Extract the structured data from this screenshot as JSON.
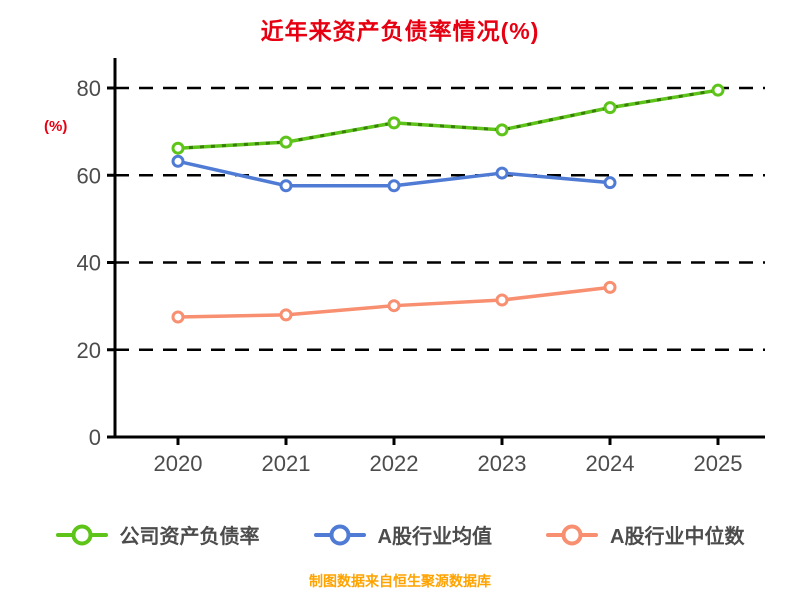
{
  "title": "近年来资产负债率情况(%)",
  "footer": "制图数据来自恒生聚源数据库",
  "colors": {
    "title_red": "#e60012",
    "footer_orange": "#ffa300",
    "axis_black": "#000000",
    "tick_text": "#4c4c4c",
    "series_green": "#5ec41a",
    "series_green_dash_overlay": "#2d6e00",
    "series_blue": "#4f7bd5",
    "series_orange": "#f78f70"
  },
  "chart_data": {
    "type": "line",
    "title": "近年来资产负债率情况(%)",
    "xlabel": "",
    "ylabel": "(%)",
    "x": [
      "2020",
      "2021",
      "2022",
      "2023",
      "2024",
      "2025"
    ],
    "ylim": [
      0,
      80
    ],
    "yticks": [
      0,
      20,
      40,
      60,
      80
    ],
    "grid": "horizontal dashed at 20/40/60/80",
    "legend_position": "bottom",
    "series": [
      {
        "name": "公司资产负债率",
        "color": "#5ec41a",
        "style": "solid-with-dark-dash-overlay",
        "marker": "open-circle",
        "values": [
          66.2,
          67.6,
          72.0,
          70.4,
          75.5,
          79.5
        ]
      },
      {
        "name": "A股行业均值",
        "color": "#4f7bd5",
        "style": "solid",
        "marker": "open-circle",
        "values": [
          63.2,
          57.6,
          57.6,
          60.5,
          58.3,
          null
        ]
      },
      {
        "name": "A股行业中位数",
        "color": "#f78f70",
        "style": "solid",
        "marker": "open-circle",
        "values": [
          27.5,
          28.0,
          30.1,
          31.4,
          34.3,
          null
        ]
      }
    ]
  }
}
